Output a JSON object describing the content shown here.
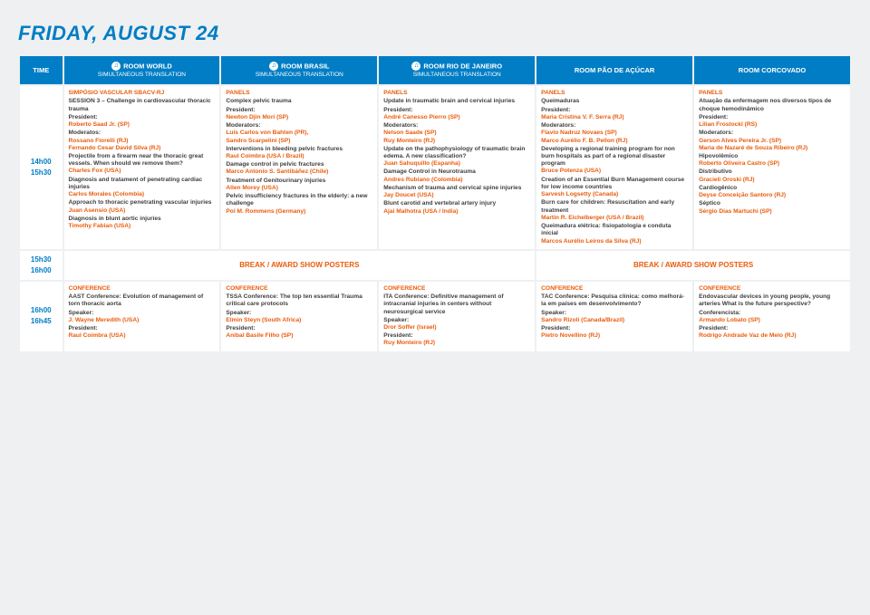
{
  "title": "FRIDAY, AUGUST 24",
  "simul": "SIMULTANEOUS TRANSLATION",
  "headers": {
    "time": "TIME",
    "r1": "ROOM WORLD",
    "r2": "ROOM BRASIL",
    "r3": "ROOM RIO DE JANEIRO",
    "r4": "ROOM PÃO DE AÇÚCAR",
    "r5": "ROOM CORCOVADO"
  },
  "slot1": {
    "t1": "14h00",
    "t2": "15h30"
  },
  "slot2": {
    "t1": "15h30",
    "t2": "16h00",
    "break": "BREAK / AWARD SHOW POSTERS"
  },
  "slot3": {
    "t1": "16h00",
    "t2": "16h45"
  },
  "r1a": {
    "cat": "SIMPÓSIO VASCULAR SBACV-RJ",
    "ses": "SESSION 3 – Challenge in cardiovascular thoracic trauma",
    "pres_l": "President:",
    "pres": "Roberto Saad Jr. (SP)",
    "mod_l": "Moderatos:",
    "mod1": "Rossano Fiorelli (RJ)",
    "mod2": "Fernando Cesar David Silva (RJ)",
    "t1": "Projectile from a firearm near the thoracic great vessels. When should we remove them?",
    "p1": "Charles Fox (USA)",
    "t2": "Diagnosis and tratament of penetrating cardiac injuries",
    "p2": "Carlos Morales (Colombia)",
    "t3": "Approach to thoracic penetrating vascular injuries",
    "p3": "Juan Asensio (USA)",
    "t4": "Diagnosis in blunt aortic injuries",
    "p4": "Timothy Fabian (USA)"
  },
  "r2a": {
    "cat": "PANELS",
    "ses": "Complex pelvic trauma",
    "pres_l": "President:",
    "pres": "Newton Djin Mori (SP)",
    "mod_l": "Moderators:",
    "mod1": "Luis Carlos von Bahten (PR),",
    "mod2": "Sandro Scarpelini (SP)",
    "t1": "Interventions in bleeding pelvic fractures",
    "p1": "Raul Coimbra (USA / Brazil)",
    "t2": "Damage control in pelvic fractures",
    "p2": "Marco Antonio S. Santibáñez (Chile)",
    "t3": "Treatment of Genitourinary injuries",
    "p3": "Allen Morey (USA)",
    "t4": "Pelvic insufficiency fractures in the elderly: a new challenge",
    "p4": "Pol M. Rommens (Germany)"
  },
  "r3a": {
    "cat": "PANELS",
    "ses": "Update in traumatic brain and cervical injuries",
    "pres_l": "President:",
    "pres": "André Canesso Pierro (SP)",
    "mod_l": "Moderators:",
    "mod1": "Nelson Saade (SP)",
    "mod2": "Ruy Monteiro (RJ)",
    "t1": "Update on the pathophysiology of traumatic brain edema. A new classification?",
    "p1": "Juan Sahuquillo (Espanha)",
    "t2": "Damage Control in Neurotrauma",
    "p2": "Andres Rubiano (Colombia)",
    "t3": "Mechanism of trauma and cervical spine injuries",
    "p3": "Jay Doucet (USA)",
    "t4": "Blunt carotid and vertebral artery injury",
    "p4": "Ajai Malhotra (USA / India)"
  },
  "r4a": {
    "cat": "PANELS",
    "ses": "Queimaduras",
    "pres_l": "President:",
    "pres": "Maria Cristina V. F. Serra (RJ)",
    "mod_l": "Moderators:",
    "mod1": "Flavio Nadruz Novaes (SP)",
    "mod2": "Marco Aurélio F. B. Pellon (RJ)",
    "t1": "Developing a regional training program for non burn hospitals as part of a regional disaster program",
    "p1": "Bruce Potenza (USA)",
    "t2": "Creation of an Essential Burn Management course for low income countries",
    "p2": "Sarvesh Logsetty (Canada)",
    "t3": "Burn care for children: Resuscitation and early treatment",
    "p3": "Martin R. Eichelberger (USA / Brazil)",
    "t4": "Queimadura elétrica: fisiopatologia e conduta inicial",
    "p4": "Marcos Aurélio Leiros da Silva (RJ)"
  },
  "r5a": {
    "cat": "PANELS",
    "ses": "Atuação da enfermagem nos diversos tipos de choque hemodinâmico",
    "pres_l": "President:",
    "pres": "Lilian Frostockl (RS)",
    "mod_l": "Moderators:",
    "mod1": "Gerson Alves Pereira Jr. (SP)",
    "mod2": "Maria de Nazaré de Souza Ribeiro (RJ)",
    "t1": "Hipovolêmico",
    "p1": "Roberto Oliveira Castro (SP)",
    "t2": "Distributivo",
    "p2": "Gracieli Oroski (RJ)",
    "t3": "Cardiogênico",
    "p3": "Deyse Conceição Santoro (RJ)",
    "t4": "Séptico",
    "p4": "Sérgio Dias Martuchi (SP)"
  },
  "r1c": {
    "cat": "CONFERENCE",
    "ses": "AAST Conference: Evolution of management of torn thoracic aorta",
    "spk_l": "Speaker:",
    "spk": "J. Wayne Meredith (USA)",
    "pres_l": "President:",
    "pres": "Raul Coimbra (USA)"
  },
  "r2c": {
    "cat": "CONFERENCE",
    "ses": "TSSA Conference: The top ten essential Trauma critical care protocols",
    "spk_l": "Speaker:",
    "spk": "Elmin Steyn (South Africa)",
    "pres_l": "President:",
    "pres": "Anibal Basile Filho (SP)"
  },
  "r3c": {
    "cat": "CONFERENCE",
    "ses": "ITA Conference: Definitive management of intracranial injuries in centers without neurosurgical service",
    "spk_l": "Speaker:",
    "spk": "Dror Soffer (Israel)",
    "pres_l": "President:",
    "pres": "Ruy Monteiro (RJ)"
  },
  "r4c": {
    "cat": "CONFERENCE",
    "ses": "TAC Conference: Pesquisa clínica: como melhorá-la em países em desenvolvimento?",
    "spk_l": "Speaker:",
    "spk": "Sandro Rizoli (Canada/Brazil)",
    "pres_l": "President:",
    "pres": "Pietro Novellino (RJ)"
  },
  "r5c": {
    "cat": "CONFERENCE",
    "ses": "Endovascular devices in young people, young arteries What is the future perspective?",
    "spk_l": "Conferencista:",
    "spk": "Armando Lobato (SP)",
    "pres_l": "President:",
    "pres": "Rodrigo Andrade Vaz de Melo (RJ)"
  }
}
